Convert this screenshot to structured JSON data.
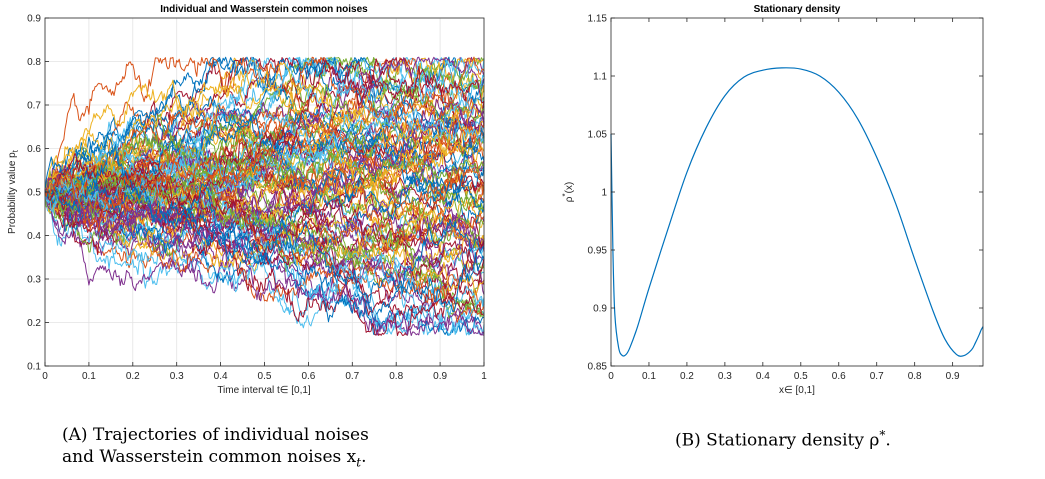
{
  "chart_data": [
    {
      "type": "line",
      "title": "Individual and Wasserstein common noises",
      "xlabel": "Time interval t∈ [0,1]",
      "ylabel": "Probability value p",
      "ylabel_sub": "t",
      "xlim": [
        0,
        1
      ],
      "ylim": [
        0.1,
        0.9
      ],
      "xticks": [
        "0",
        "0.1",
        "0.2",
        "0.3",
        "0.4",
        "0.5",
        "0.6",
        "0.7",
        "0.8",
        "0.9",
        "1"
      ],
      "yticks": [
        "0.1",
        "0.2",
        "0.3",
        "0.4",
        "0.5",
        "0.6",
        "0.7",
        "0.8",
        "0.9"
      ],
      "grid": true,
      "start_value": 0.5,
      "series_count": 100,
      "range_min": 0.17,
      "range_max": 0.81,
      "colors": [
        "#0072BD",
        "#D95319",
        "#EDB120",
        "#7E2F8E",
        "#77AC30",
        "#4DBEEE",
        "#A2142F"
      ]
    },
    {
      "type": "line",
      "title": "Stationary density",
      "xlabel": "x∈ [0,1]",
      "ylabel": "ρ",
      "ylabel_sup": "*",
      "ylabel_tail": "(x)",
      "xlim": [
        0,
        0.98
      ],
      "ylim": [
        0.85,
        1.15
      ],
      "xticks": [
        "0",
        "0.1",
        "0.2",
        "0.3",
        "0.4",
        "0.5",
        "0.6",
        "0.7",
        "0.8",
        "0.9"
      ],
      "yticks": [
        "0.85",
        "0.9",
        "0.95",
        "1",
        "1.05",
        "1.1",
        "1.15"
      ],
      "grid": false,
      "color": "#0072BD",
      "x": [
        0.0,
        0.005,
        0.01,
        0.02,
        0.03,
        0.04,
        0.05,
        0.07,
        0.1,
        0.15,
        0.2,
        0.25,
        0.3,
        0.35,
        0.4,
        0.45,
        0.5,
        0.55,
        0.6,
        0.65,
        0.7,
        0.75,
        0.8,
        0.85,
        0.88,
        0.91,
        0.93,
        0.95,
        0.96,
        0.97,
        0.975,
        0.98
      ],
      "y": [
        1.05,
        0.95,
        0.895,
        0.866,
        0.859,
        0.86,
        0.866,
        0.884,
        0.917,
        0.968,
        1.017,
        1.055,
        1.083,
        1.099,
        1.105,
        1.107,
        1.106,
        1.1,
        1.086,
        1.063,
        1.03,
        0.99,
        0.942,
        0.896,
        0.873,
        0.86,
        0.859,
        0.864,
        0.87,
        0.877,
        0.881,
        0.884
      ]
    }
  ],
  "captions": {
    "a_tag": "(A)",
    "a_line1": "Trajectories of individual noises",
    "a_line2": "and Wasserstein common noises x",
    "a_sub": "t",
    "a_end": ".",
    "b_tag": "(B)",
    "b_text": "Stationary density ρ",
    "b_sup": "*",
    "b_end": "."
  }
}
